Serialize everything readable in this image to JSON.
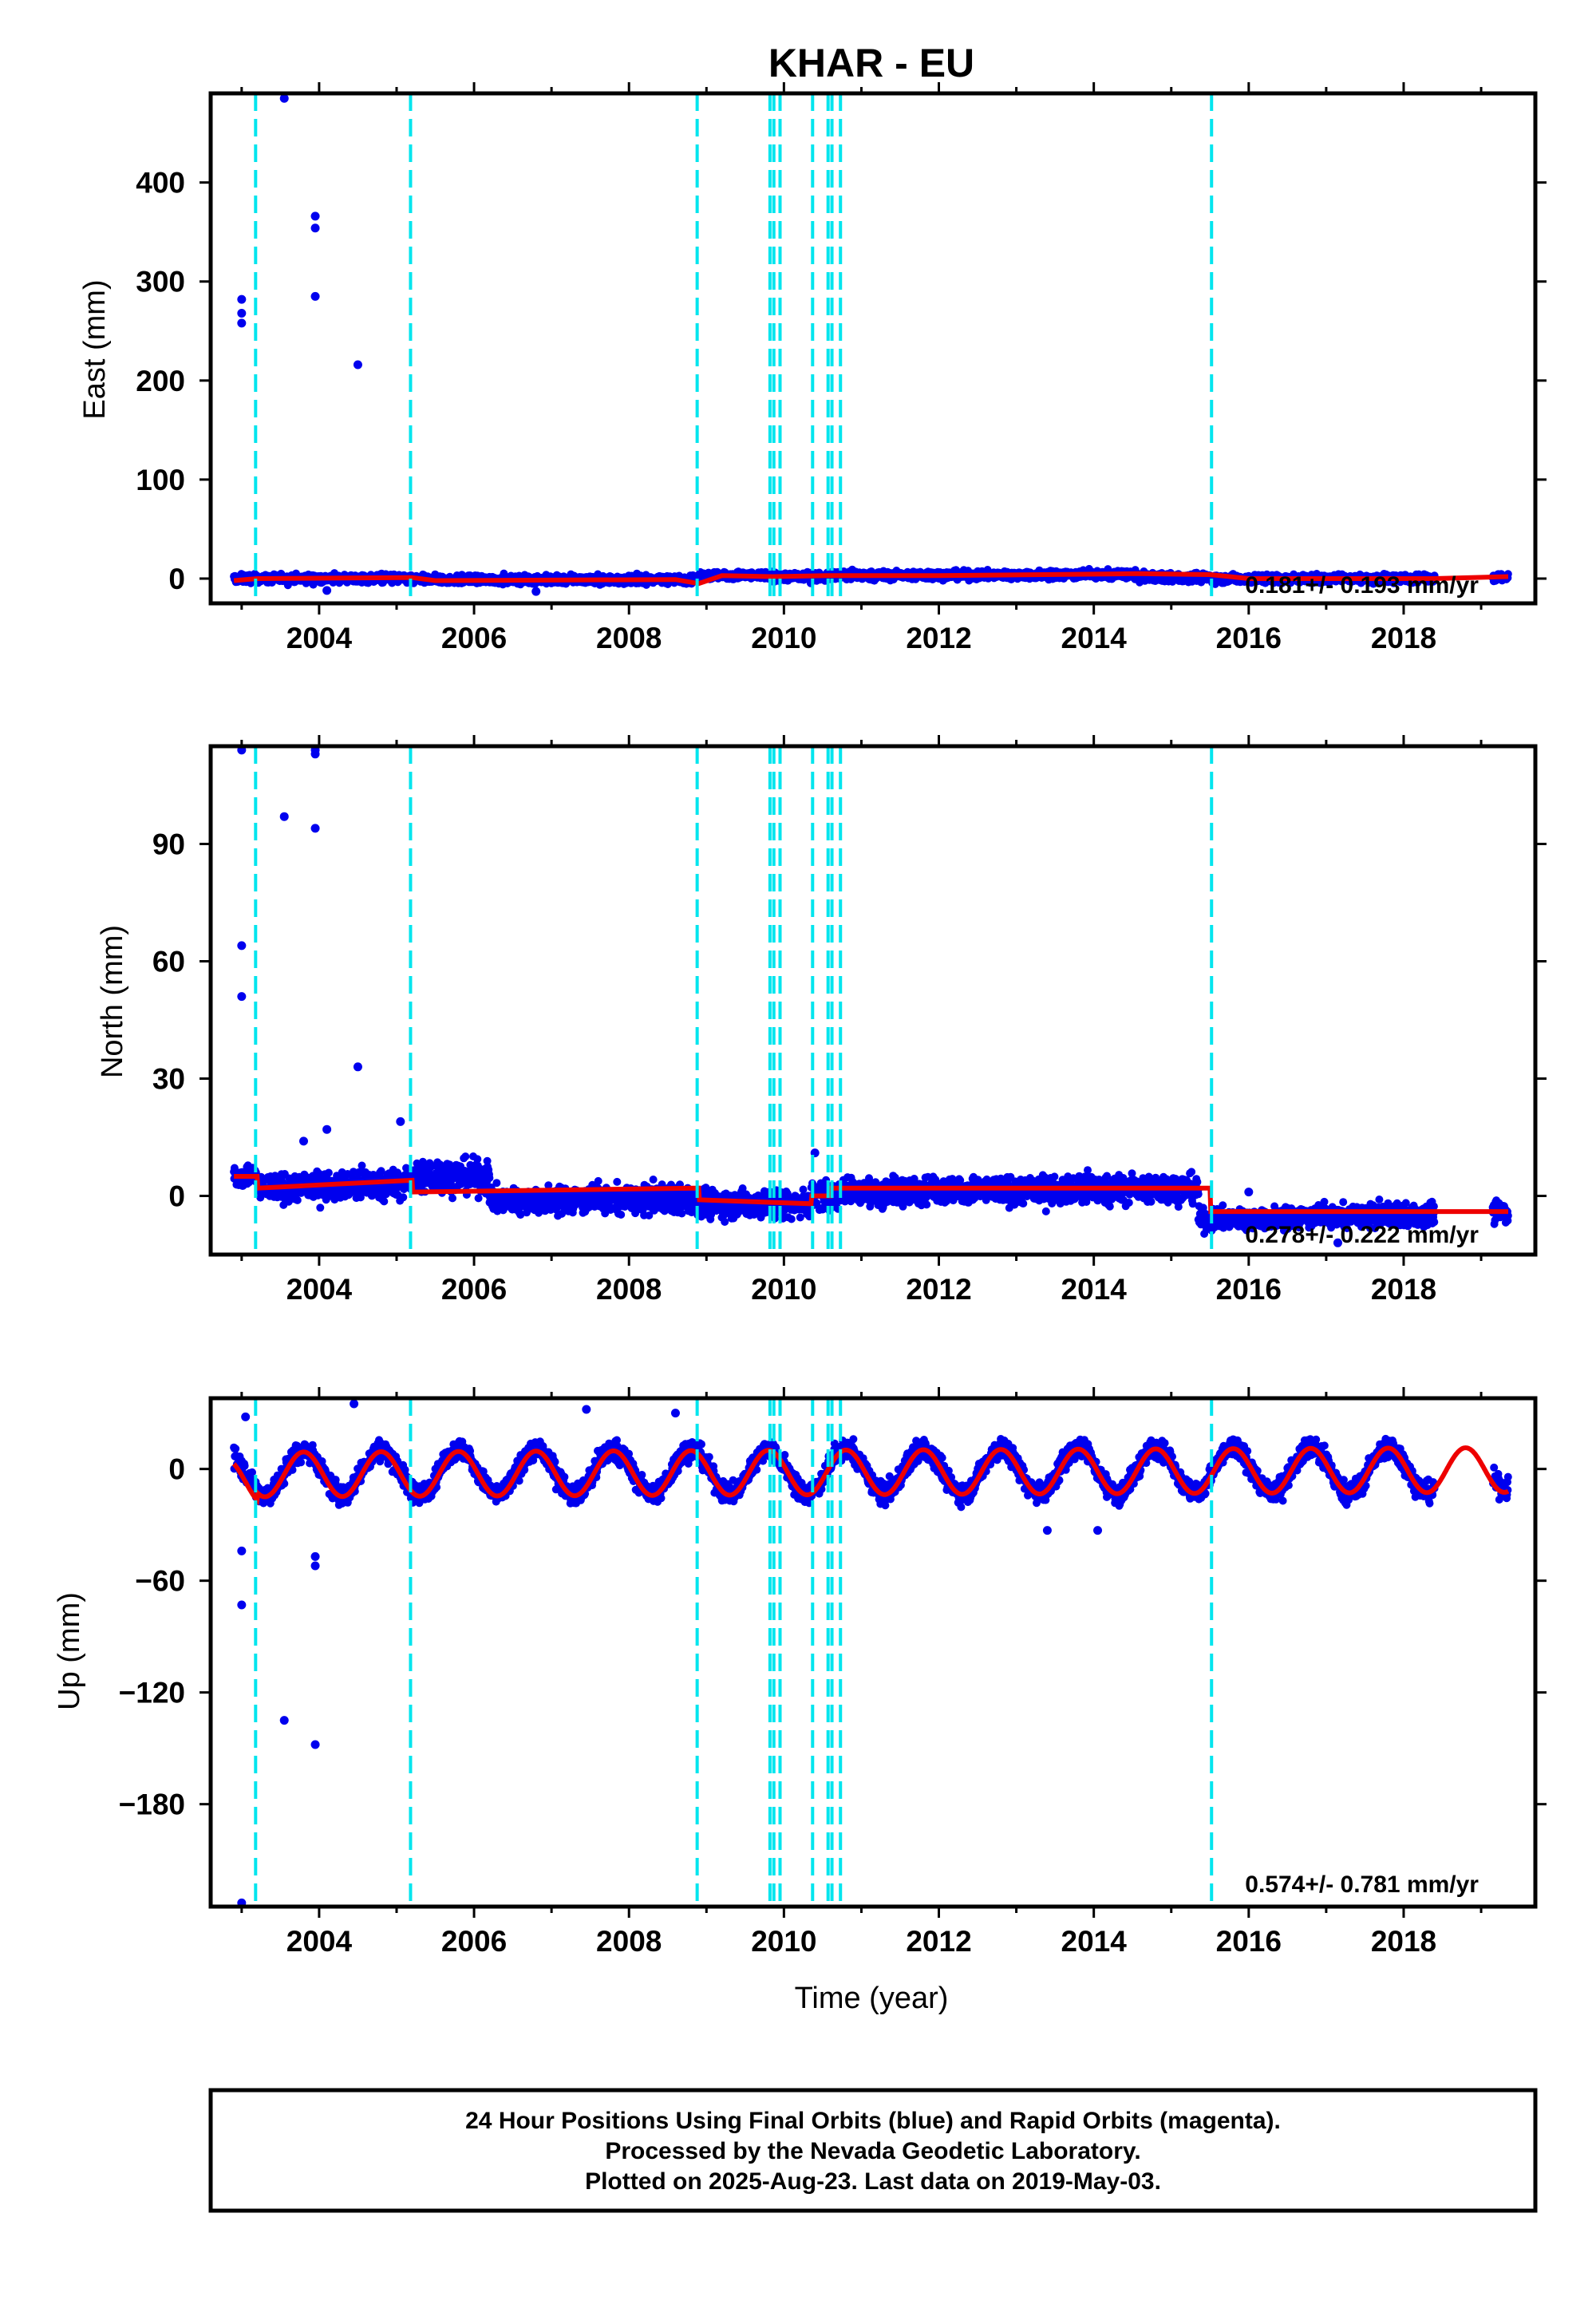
{
  "title": "KHAR - EU",
  "colors": {
    "data_points": "#0000ee",
    "model_line": "#ee0000",
    "event_lines": "#00e5ee",
    "frame": "#000000"
  },
  "chart_data": [
    {
      "type": "scatter",
      "id": "east",
      "ylabel": "East (mm)",
      "xlabel": "",
      "xlim": [
        2002.6,
        2019.7
      ],
      "ylim": [
        -25,
        490
      ],
      "yticks": [
        0,
        100,
        200,
        300,
        400
      ],
      "xticks": [
        2004,
        2006,
        2008,
        2010,
        2012,
        2014,
        2016,
        2018
      ],
      "rate": "0.181+/- 0.193 mm/yr",
      "outliers": [
        {
          "x": 2003.0,
          "y": 282
        },
        {
          "x": 2003.0,
          "y": 268
        },
        {
          "x": 2003.0,
          "y": 258
        },
        {
          "x": 2003.55,
          "y": 485
        },
        {
          "x": 2003.95,
          "y": 366
        },
        {
          "x": 2003.95,
          "y": 354
        },
        {
          "x": 2003.95,
          "y": 285
        },
        {
          "x": 2004.5,
          "y": 216
        },
        {
          "x": 2004.1,
          "y": -12
        },
        {
          "x": 2006.8,
          "y": -13
        }
      ],
      "series": [
        {
          "name": "24 Hour Positions Using Final Orbits",
          "style": "points",
          "segments": [
            {
              "x": [
                2002.9,
                2005.2
              ],
              "level": 0,
              "trend": 0,
              "noise": 3
            },
            {
              "x": [
                2005.2,
                2008.9
              ],
              "level": -1,
              "trend": 0,
              "noise": 3
            },
            {
              "x": [
                2008.9,
                2009.85
              ],
              "level": 3,
              "trend": 0,
              "noise": 3
            },
            {
              "x": [
                2009.85,
                2010.55
              ],
              "level": 2,
              "trend": 0,
              "noise": 3
            },
            {
              "x": [
                2010.55,
                2014.55
              ],
              "level": 3,
              "trend": 0.3,
              "noise": 3
            },
            {
              "x": [
                2014.55,
                2015.5
              ],
              "level": 1,
              "trend": 0,
              "noise": 3
            },
            {
              "x": [
                2015.5,
                2018.4
              ],
              "level": 0,
              "trend": 0,
              "noise": 3
            },
            {
              "x": [
                2019.15,
                2019.35
              ],
              "level": 1,
              "trend": 0,
              "noise": 3
            }
          ]
        },
        {
          "name": "model",
          "style": "line",
          "x": [
            2002.9,
            2003.2,
            2005.2,
            2005.5,
            2008.6,
            2008.9,
            2009.2,
            2009.85,
            2010.55,
            2012.0,
            2014.55,
            2015.5,
            2016.0,
            2018.4,
            2019.35
          ],
          "y": [
            -2,
            0,
            1,
            -2,
            -1,
            -5,
            3,
            2,
            3,
            3,
            5,
            4,
            0,
            0,
            2
          ]
        }
      ]
    },
    {
      "type": "scatter",
      "id": "north",
      "ylabel": "North (mm)",
      "xlabel": "",
      "xlim": [
        2002.6,
        2019.7
      ],
      "ylim": [
        -15,
        115
      ],
      "yticks": [
        0,
        30,
        60,
        90
      ],
      "xticks": [
        2004,
        2006,
        2008,
        2010,
        2012,
        2014,
        2016,
        2018
      ],
      "rate": "0.278+/- 0.222 mm/yr",
      "outliers": [
        {
          "x": 2003.0,
          "y": 114
        },
        {
          "x": 2003.0,
          "y": 64
        },
        {
          "x": 2003.0,
          "y": 51
        },
        {
          "x": 2003.55,
          "y": 97
        },
        {
          "x": 2003.95,
          "y": 114
        },
        {
          "x": 2003.95,
          "y": 113
        },
        {
          "x": 2003.95,
          "y": 94
        },
        {
          "x": 2004.5,
          "y": 33
        },
        {
          "x": 2004.1,
          "y": 17
        },
        {
          "x": 2003.8,
          "y": 14
        },
        {
          "x": 2005.05,
          "y": 19
        },
        {
          "x": 2010.4,
          "y": 11
        },
        {
          "x": 2017.15,
          "y": -12
        },
        {
          "x": 2016.0,
          "y": 1
        }
      ],
      "series": [
        {
          "name": "24 Hour Positions Using Final Orbits",
          "style": "points",
          "segments": [
            {
              "x": [
                2002.9,
                2003.2
              ],
              "level": 5,
              "trend": 0,
              "noise": 2
            },
            {
              "x": [
                2003.2,
                2005.2
              ],
              "level": 2,
              "trend": 0.6,
              "noise": 2.5
            },
            {
              "x": [
                2005.2,
                2006.2
              ],
              "level": 5,
              "trend": 0,
              "noise": 3
            },
            {
              "x": [
                2006.2,
                2008.9
              ],
              "level": -1,
              "trend": 0,
              "noise": 2.5
            },
            {
              "x": [
                2008.9,
                2010.35
              ],
              "level": -2,
              "trend": 0,
              "noise": 2.5
            },
            {
              "x": [
                2010.35,
                2010.7
              ],
              "level": 0,
              "trend": 0,
              "noise": 2.5
            },
            {
              "x": [
                2010.7,
                2015.35
              ],
              "level": 1,
              "trend": 0.2,
              "noise": 2.5
            },
            {
              "x": [
                2015.35,
                2018.4
              ],
              "level": -6,
              "trend": 0.4,
              "noise": 2
            },
            {
              "x": [
                2019.15,
                2019.35
              ],
              "level": -4,
              "trend": 0,
              "noise": 2
            }
          ]
        },
        {
          "name": "model",
          "style": "line",
          "x": [
            2002.9,
            2003.2,
            2003.21,
            2005.2,
            2005.21,
            2008.9,
            2008.91,
            2010.35,
            2010.36,
            2010.6,
            2010.61,
            2015.5,
            2015.51,
            2018.4,
            2019.35
          ],
          "y": [
            5,
            5,
            2,
            4,
            1,
            2,
            -1,
            -2,
            0,
            0,
            2,
            2,
            -4,
            -4,
            -4
          ]
        }
      ]
    },
    {
      "type": "scatter",
      "id": "up",
      "ylabel": "Up (mm)",
      "xlabel": "Time (year)",
      "xlim": [
        2002.6,
        2019.7
      ],
      "ylim": [
        -235,
        38
      ],
      "yticks": [
        0,
        -60,
        -120,
        -180
      ],
      "xticks": [
        2004,
        2006,
        2008,
        2010,
        2012,
        2014,
        2016,
        2018
      ],
      "rate": "0.574+/- 0.781 mm/yr",
      "outliers": [
        {
          "x": 2003.0,
          "y": -233
        },
        {
          "x": 2003.0,
          "y": -73
        },
        {
          "x": 2003.0,
          "y": -44
        },
        {
          "x": 2003.05,
          "y": 28
        },
        {
          "x": 2003.55,
          "y": -135
        },
        {
          "x": 2003.95,
          "y": -148
        },
        {
          "x": 2003.95,
          "y": -47
        },
        {
          "x": 2003.95,
          "y": -52
        },
        {
          "x": 2004.45,
          "y": 35
        },
        {
          "x": 2007.45,
          "y": 32
        },
        {
          "x": 2008.6,
          "y": 30
        },
        {
          "x": 2013.4,
          "y": -33
        },
        {
          "x": 2014.05,
          "y": -33
        }
      ],
      "series": [
        {
          "name": "24 Hour Positions Using Final Orbits",
          "style": "points",
          "seasonal_amplitude": 12,
          "seasonal_phase_year_fraction": 0.55,
          "segments": [
            {
              "x": [
                2002.9,
                2018.4
              ],
              "level": -2,
              "trend": 0.1,
              "noise": 4
            },
            {
              "x": [
                2019.15,
                2019.35
              ],
              "level": 2,
              "trend": 0,
              "noise": 4
            }
          ]
        },
        {
          "name": "model",
          "style": "line",
          "seasonal_amplitude": 12,
          "seasonal_phase_year_fraction": 0.55,
          "x_range": [
            2002.9,
            2019.35
          ],
          "level": -3,
          "trend": 0.15,
          "offsets": [
            {
              "x": 2003.2,
              "dy": -4
            }
          ]
        }
      ]
    }
  ],
  "event_lines": [
    2003.18,
    2005.18,
    2008.88,
    2009.82,
    2009.87,
    2009.95,
    2010.37,
    2010.57,
    2010.62,
    2010.73,
    2015.52
  ],
  "footer": {
    "line1": "24 Hour Positions Using Final Orbits (blue) and Rapid Orbits (magenta).",
    "line2": "Processed by the Nevada Geodetic Laboratory.",
    "line3": "Plotted on 2025-Aug-23. Last data on 2019-May-03."
  }
}
